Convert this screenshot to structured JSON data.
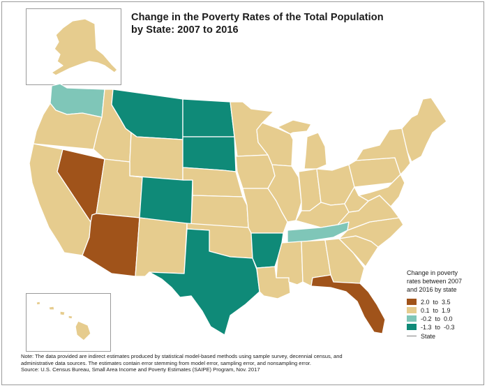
{
  "title_line1": "Change in the Poverty Rates of the Total Population",
  "title_line2": "by State: 2007 to 2016",
  "legend": {
    "title_line1": "Change in poverty",
    "title_line2": "rates between 2007",
    "title_line3": "and 2016 by state",
    "items": [
      {
        "label": "2.0  to  3.5",
        "color": "#a0531a"
      },
      {
        "label": "0.1  to  1.9",
        "color": "#e6cc8e"
      },
      {
        "label": "-0.2  to  0.0",
        "color": "#7fc6b8"
      },
      {
        "label": "-1.3  to  -0.3",
        "color": "#0f8a78"
      }
    ],
    "state_label": "State"
  },
  "footnote": {
    "line1": "Note: The data provided are indirect estimates produced by statistical model-based methods using sample survey, decennial census, and",
    "line2": "administrative data sources. The estimates contain error stemming from model error, sampling error, and nonsampling error.",
    "line3": "Source: U.S. Census Bureau, Small Area Income and Poverty Estimates (SAIPE) Program, Nov. 2017"
  },
  "map": {
    "categories": {
      "WA": "c3",
      "OR": "c2",
      "CA": "c2",
      "NV": "c1",
      "ID": "c2",
      "MT": "c4",
      "WY": "c2",
      "UT": "c2",
      "AZ": "c1",
      "CO": "c4",
      "NM": "c2",
      "ND": "c4",
      "SD": "c4",
      "NE": "c2",
      "KS": "c2",
      "OK": "c2",
      "TX": "c4",
      "MN": "c2",
      "IA": "c2",
      "MO": "c2",
      "AR": "c4",
      "LA": "c2",
      "WI": "c2",
      "IL": "c2",
      "MI": "c2",
      "IN": "c2",
      "OH": "c2",
      "KY": "c2",
      "TN": "c3",
      "MS": "c2",
      "AL": "c2",
      "GA": "c2",
      "FL": "c1",
      "SC": "c2",
      "NC": "c2",
      "VA": "c2",
      "WV": "c2",
      "PA": "c2",
      "NY": "c2",
      "NE_STATES": "c2",
      "AK": "c2",
      "HI": "c2"
    },
    "colors": {
      "c1": "#a0531a",
      "c2": "#e6cc8e",
      "c3": "#7fc6b8",
      "c4": "#0f8a78"
    }
  }
}
